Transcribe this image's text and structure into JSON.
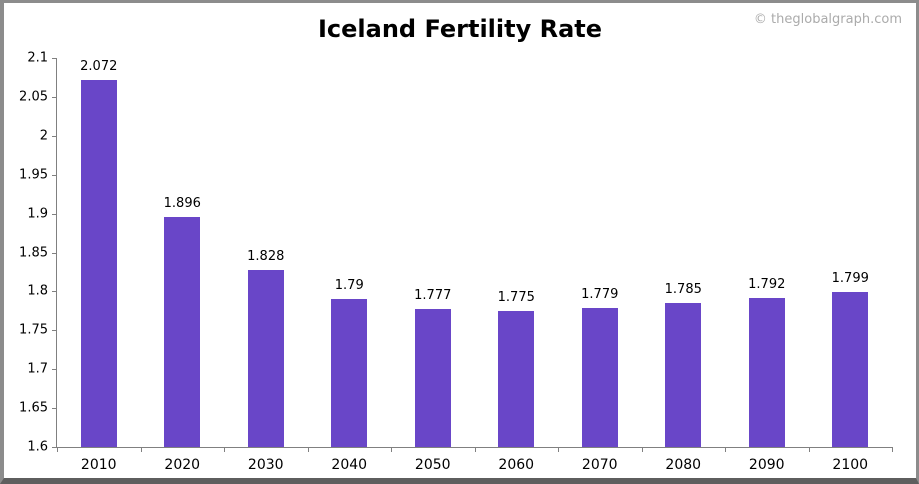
{
  "header": {
    "title": "Iceland Fertility Rate",
    "watermark": "© theglobalgraph.com"
  },
  "colors": {
    "bar": "#6946c8",
    "axis": "#808080",
    "title": "#000000",
    "watermark": "#ababab"
  },
  "chart_data": {
    "type": "bar",
    "title": "Iceland Fertility Rate",
    "categories": [
      "2010",
      "2020",
      "2030",
      "2040",
      "2050",
      "2060",
      "2070",
      "2080",
      "2090",
      "2100"
    ],
    "values": [
      2.072,
      1.896,
      1.828,
      1.79,
      1.777,
      1.775,
      1.779,
      1.785,
      1.792,
      1.799
    ],
    "value_labels": [
      "2.072",
      "1.896",
      "1.828",
      "1.79",
      "1.777",
      "1.775",
      "1.779",
      "1.785",
      "1.792",
      "1.799"
    ],
    "xlabel": "",
    "ylabel": "",
    "ylim": [
      1.6,
      2.1
    ],
    "ytick_step": 0.05,
    "ytick_labels": [
      "2.1",
      "2.05",
      "2",
      "1.95",
      "1.9",
      "1.85",
      "1.8",
      "1.75",
      "1.7",
      "1.65",
      "1.6"
    ],
    "grid": false,
    "legend": "none",
    "bar_color": "#6946c8"
  }
}
